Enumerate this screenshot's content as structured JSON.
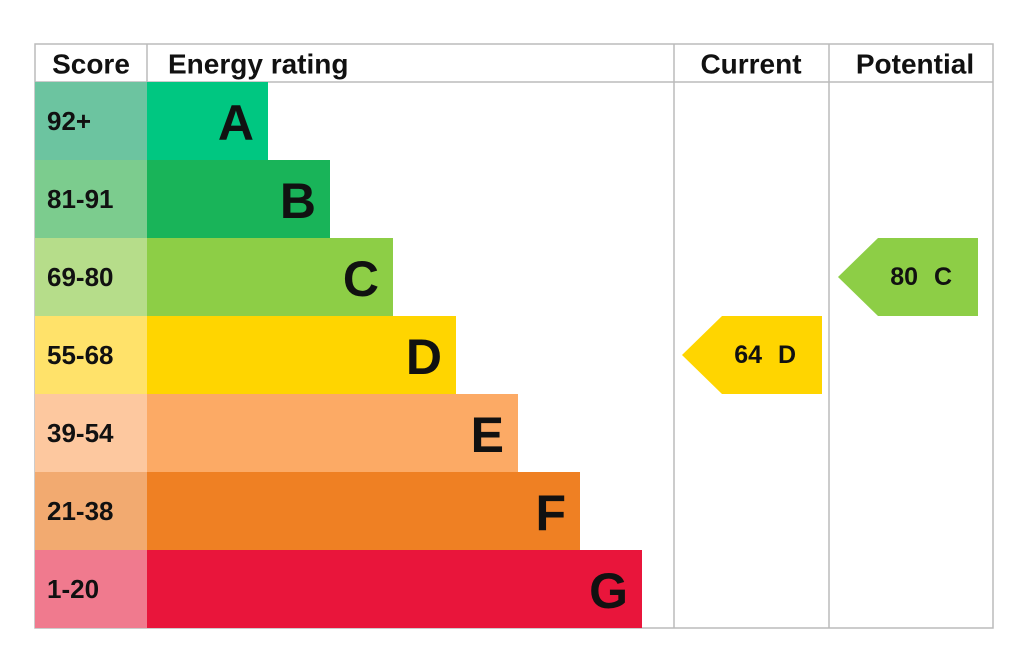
{
  "headers": {
    "score": "Score",
    "rating": "Energy rating",
    "current": "Current",
    "potential": "Potential"
  },
  "bands": [
    {
      "score": "92+",
      "letter": "A",
      "color": "#00c781",
      "score_color": "#6cc4a0"
    },
    {
      "score": "81-91",
      "letter": "B",
      "color": "#19b459",
      "score_color": "#7ccc8e"
    },
    {
      "score": "69-80",
      "letter": "C",
      "color": "#8dce46",
      "score_color": "#b6dd8a"
    },
    {
      "score": "55-68",
      "letter": "D",
      "color": "#ffd500",
      "score_color": "#ffe26a"
    },
    {
      "score": "39-54",
      "letter": "E",
      "color": "#fcaa65",
      "score_color": "#fdc89f"
    },
    {
      "score": "21-38",
      "letter": "F",
      "color": "#ef8023",
      "score_color": "#f2aa70"
    },
    {
      "score": "1-20",
      "letter": "G",
      "color": "#e9153b",
      "score_color": "#f07a8e"
    }
  ],
  "current": {
    "score": 64,
    "letter": "D"
  },
  "potential": {
    "score": 80,
    "letter": "C"
  }
}
